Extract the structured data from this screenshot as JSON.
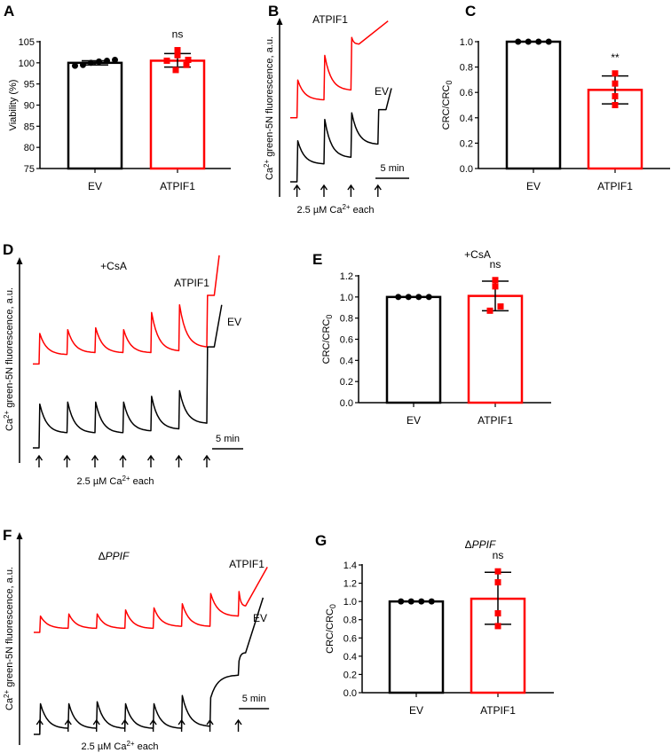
{
  "chart_data": [
    {
      "id": "A",
      "panel_label": "A",
      "type": "bar",
      "ylabel": "Viability (%)",
      "ylim": [
        75,
        105
      ],
      "yticks": [
        75,
        80,
        85,
        90,
        95,
        100,
        105
      ],
      "categories": [
        "EV",
        "ATPIF1"
      ],
      "annotation": "ns",
      "title": "",
      "series": [
        {
          "name": "EV",
          "color": "#000000",
          "mean": 100.0,
          "err": [
            99.5,
            100.5
          ],
          "points": [
            99.3,
            99.5,
            100.0,
            100.3,
            100.5,
            100.7
          ],
          "marker": "circle"
        },
        {
          "name": "ATPIF1",
          "color": "#ff0000",
          "mean": 100.5,
          "err": [
            99.0,
            102.2
          ],
          "points": [
            98.3,
            99.5,
            100.5,
            100.7,
            101.8,
            103.0
          ],
          "marker": "square"
        }
      ]
    },
    {
      "id": "C",
      "panel_label": "C",
      "type": "bar",
      "ylabel": "CRC/CRC",
      "ylabel_sub": "0",
      "ylim": [
        0,
        1.0
      ],
      "yticks": [
        0.0,
        0.2,
        0.4,
        0.6,
        0.8,
        1.0
      ],
      "categories": [
        "EV",
        "ATPIF1"
      ],
      "annotation": "**",
      "title": "",
      "series": [
        {
          "name": "EV",
          "color": "#000000",
          "mean": 1.0,
          "err": [
            1.0,
            1.0
          ],
          "points": [
            1.0,
            1.0,
            1.0,
            1.0
          ],
          "marker": "circle"
        },
        {
          "name": "ATPIF1",
          "color": "#ff0000",
          "mean": 0.62,
          "err": [
            0.51,
            0.73
          ],
          "points": [
            0.75,
            0.67,
            0.57,
            0.5
          ],
          "marker": "square"
        }
      ]
    },
    {
      "id": "E",
      "panel_label": "E",
      "type": "bar",
      "ylabel": "CRC/CRC",
      "ylabel_sub": "0",
      "ylim": [
        0,
        1.2
      ],
      "yticks": [
        0.0,
        0.2,
        0.4,
        0.6,
        0.8,
        1.0,
        1.2
      ],
      "categories": [
        "EV",
        "ATPIF1"
      ],
      "annotation": "ns",
      "title": "+CsA",
      "series": [
        {
          "name": "EV",
          "color": "#000000",
          "mean": 1.0,
          "err": [
            1.0,
            1.0
          ],
          "points": [
            1.0,
            1.0,
            1.0,
            1.0
          ],
          "marker": "circle"
        },
        {
          "name": "ATPIF1",
          "color": "#ff0000",
          "mean": 1.01,
          "err": [
            0.87,
            1.15
          ],
          "points": [
            1.16,
            1.1,
            0.91,
            0.87
          ],
          "marker": "square"
        }
      ]
    },
    {
      "id": "G",
      "panel_label": "G",
      "type": "bar",
      "ylabel": "CRC/CRC",
      "ylabel_sub": "0",
      "ylim": [
        0,
        1.4
      ],
      "yticks": [
        0.0,
        0.2,
        0.4,
        0.6,
        0.8,
        1.0,
        1.2,
        1.4
      ],
      "categories": [
        "EV",
        "ATPIF1"
      ],
      "annotation": "ns",
      "title": "Δ",
      "title_italic": "PPIF",
      "series": [
        {
          "name": "EV",
          "color": "#000000",
          "mean": 1.0,
          "err": [
            1.0,
            1.0
          ],
          "points": [
            1.0,
            1.0,
            1.0,
            1.0
          ],
          "marker": "circle"
        },
        {
          "name": "ATPIF1",
          "color": "#ff0000",
          "mean": 1.03,
          "err": [
            0.75,
            1.32
          ],
          "points": [
            1.33,
            1.21,
            0.87,
            0.73
          ],
          "marker": "square"
        }
      ]
    },
    {
      "id": "B",
      "panel_label": "B",
      "type": "line",
      "title": "",
      "ylabel": "green-5N fluorescence, a.u.",
      "ylabel_prefix": "Ca",
      "ylabel_sup": "2+",
      "xlabel": "2.5 µM Ca",
      "xlabel_sup": "2+",
      "xlabel_suffix": " each",
      "scalebar": "5 min",
      "xunit": "min",
      "t_end": 15,
      "additions": [
        1,
        5,
        9,
        13
      ],
      "series": [
        {
          "name": "ATPIF1",
          "color": "#ff0000",
          "start": 39,
          "pulses": [
            {
              "peak": 62,
              "settle": 50
            },
            {
              "peak": 77,
              "settle": 56
            },
            {
              "peak": 88,
              "settle": 84
            }
          ],
          "tail": [
            14.5,
            98
          ]
        },
        {
          "name": "EV",
          "color": "#000000",
          "start": 0,
          "pulses": [
            {
              "peak": 25,
              "settle": 11
            },
            {
              "peak": 38,
              "settle": 15
            },
            {
              "peak": 42,
              "settle": 23
            },
            {
              "peak": 44,
              "settle": 44
            }
          ],
          "tail": [
            15,
            57
          ]
        }
      ]
    },
    {
      "id": "D",
      "panel_label": "D",
      "type": "line",
      "title": "+CsA",
      "ylabel": "green-5N fluorescence, a.u.",
      "ylabel_prefix": "Ca",
      "ylabel_sup": "2+",
      "xlabel": "2.5 µM Ca",
      "xlabel_sup": "2+",
      "xlabel_suffix": " each",
      "scalebar": "5 min",
      "xunit": "min",
      "t_end": 31,
      "additions": [
        1,
        5.5,
        10,
        14.5,
        19,
        23.5,
        28
      ],
      "series": [
        {
          "name": "ATPIF1",
          "color": "#ff0000",
          "start": 44,
          "pulses": [
            {
              "peak": 60,
              "settle": 49
            },
            {
              "peak": 62,
              "settle": 50
            },
            {
              "peak": 63,
              "settle": 50
            },
            {
              "peak": 62,
              "settle": 50
            },
            {
              "peak": 71,
              "settle": 51
            },
            {
              "peak": 75,
              "settle": 53
            },
            {
              "peak": 80,
              "settle": 80
            }
          ],
          "tail": [
            30,
            101
          ]
        },
        {
          "name": "EV",
          "color": "#000000",
          "start": 0,
          "pulses": [
            {
              "peak": 23,
              "settle": 8
            },
            {
              "peak": 24,
              "settle": 8
            },
            {
              "peak": 24,
              "settle": 8
            },
            {
              "peak": 24,
              "settle": 9
            },
            {
              "peak": 27,
              "settle": 10
            },
            {
              "peak": 30,
              "settle": 13
            },
            {
              "peak": 53,
              "settle": 53
            }
          ],
          "tail": [
            30.4,
            75
          ]
        }
      ]
    },
    {
      "id": "F",
      "panel_label": "F",
      "type": "line",
      "title": "Δ",
      "title_italic": "PPIF",
      "ylabel": "green-5N fluorescence, a.u.",
      "ylabel_prefix": "Ca",
      "ylabel_sup": "2+",
      "xlabel": "2.5 µM Ca",
      "xlabel_sup": "2+",
      "xlabel_suffix": " each",
      "scalebar": "5 min",
      "xunit": "min",
      "t_end": 38.7,
      "additions": [
        1,
        5.7,
        10.4,
        15.1,
        19.8,
        24.5,
        29.2,
        33.9
      ],
      "series": [
        {
          "name": "ATPIF1",
          "color": "#ff0000",
          "start": 50,
          "pulses": [
            {
              "peak": 58,
              "settle": 52
            },
            {
              "peak": 59,
              "settle": 52
            },
            {
              "peak": 59,
              "settle": 52
            },
            {
              "peak": 61,
              "settle": 52
            },
            {
              "peak": 62,
              "settle": 53
            },
            {
              "peak": 64,
              "settle": 53
            },
            {
              "peak": 69,
              "settle": 58
            },
            {
              "peak": 70,
              "settle": 63
            }
          ],
          "tail": [
            38.7,
            82
          ]
        },
        {
          "name": "EV",
          "color": "#000000",
          "start": 0,
          "pulses": [
            {
              "peak": 15,
              "settle": 3
            },
            {
              "peak": 15,
              "settle": 3
            },
            {
              "peak": 16,
              "settle": 3
            },
            {
              "peak": 15,
              "settle": 3
            },
            {
              "peak": 15,
              "settle": 3
            },
            {
              "peak": 19,
              "settle": 4
            },
            {
              "peak": 18,
              "settle": 29
            },
            {
              "peak": 36,
              "settle": 40
            }
          ],
          "tail": [
            38,
            67
          ]
        }
      ]
    }
  ]
}
